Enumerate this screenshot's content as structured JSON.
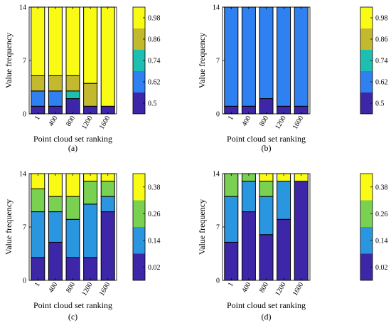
{
  "colors": {
    "set1": [
      "#3e26a8",
      "#2f80f0",
      "#1dbfb0",
      "#c2b92f",
      "#f9fb15"
    ],
    "set2": [
      "#3e26a8",
      "#2a96e0",
      "#7ad151",
      "#f9fb15"
    ]
  },
  "chart_data": [
    {
      "type": "bar",
      "panel_label": "(a)",
      "xlabel": "Point cloud set ranking",
      "ylabel": "Value frequency",
      "categories": [
        "1",
        "400",
        "800",
        "1200",
        "1600"
      ],
      "ylim": [
        0,
        14
      ],
      "yticks": [
        "0",
        "7",
        "14"
      ],
      "stacked": true,
      "colorbar": {
        "labels": [
          "0.5",
          "0.62",
          "0.74",
          "0.86",
          "0.98"
        ],
        "color_set": "set1"
      },
      "series": [
        {
          "values": [
            1,
            1,
            2,
            1,
            1
          ]
        },
        {
          "values": [
            2,
            2,
            0,
            0,
            0
          ]
        },
        {
          "values": [
            0,
            0,
            1,
            0,
            0
          ]
        },
        {
          "values": [
            2,
            2,
            2,
            3,
            0
          ]
        },
        {
          "values": [
            9,
            9,
            9,
            10,
            13
          ]
        }
      ]
    },
    {
      "type": "bar",
      "panel_label": "(b)",
      "xlabel": "Point cloud set ranking",
      "ylabel": "Value frequency",
      "categories": [
        "1",
        "400",
        "800",
        "1200",
        "1600"
      ],
      "ylim": [
        0,
        14
      ],
      "yticks": [
        "0",
        "7",
        "14"
      ],
      "stacked": true,
      "colorbar": {
        "labels": [
          "0.5",
          "0.62",
          "0.74",
          "0.86",
          "0.98"
        ],
        "color_set": "set1"
      },
      "series": [
        {
          "values": [
            1,
            1,
            2,
            1,
            1
          ]
        },
        {
          "values": [
            13,
            13,
            12,
            13,
            13
          ]
        },
        {
          "values": [
            0,
            0,
            0,
            0,
            0
          ]
        },
        {
          "values": [
            0,
            0,
            0,
            0,
            0
          ]
        },
        {
          "values": [
            0,
            0,
            0,
            0,
            0
          ]
        }
      ]
    },
    {
      "type": "bar",
      "panel_label": "(c)",
      "xlabel": "Point cloud set ranking",
      "ylabel": "Value frequency",
      "categories": [
        "1",
        "400",
        "800",
        "1200",
        "1600"
      ],
      "ylim": [
        0,
        14
      ],
      "yticks": [
        "0",
        "7",
        "14"
      ],
      "stacked": true,
      "colorbar": {
        "labels": [
          "0.02",
          "0.14",
          "0.26",
          "0.38"
        ],
        "color_set": "set2"
      },
      "series": [
        {
          "values": [
            3,
            5,
            3,
            3,
            9
          ]
        },
        {
          "values": [
            6,
            4,
            5,
            7,
            2
          ]
        },
        {
          "values": [
            3,
            2,
            3,
            3,
            2
          ]
        },
        {
          "values": [
            2,
            3,
            3,
            1,
            1
          ]
        }
      ]
    },
    {
      "type": "bar",
      "panel_label": "(d)",
      "xlabel": "Point cloud set ranking",
      "ylabel": "Value frequency",
      "categories": [
        "1",
        "400",
        "800",
        "1200",
        "1600"
      ],
      "ylim": [
        0,
        14
      ],
      "yticks": [
        "0",
        "7",
        "14"
      ],
      "stacked": true,
      "colorbar": {
        "labels": [
          "0.02",
          "0.14",
          "0.26",
          "0.38"
        ],
        "color_set": "set2"
      },
      "series": [
        {
          "values": [
            5,
            9,
            6,
            8,
            13
          ]
        },
        {
          "values": [
            6,
            4,
            5,
            5,
            0
          ]
        },
        {
          "values": [
            3,
            1,
            2,
            0,
            0
          ]
        },
        {
          "values": [
            0,
            0,
            1,
            1,
            1
          ]
        }
      ]
    }
  ]
}
